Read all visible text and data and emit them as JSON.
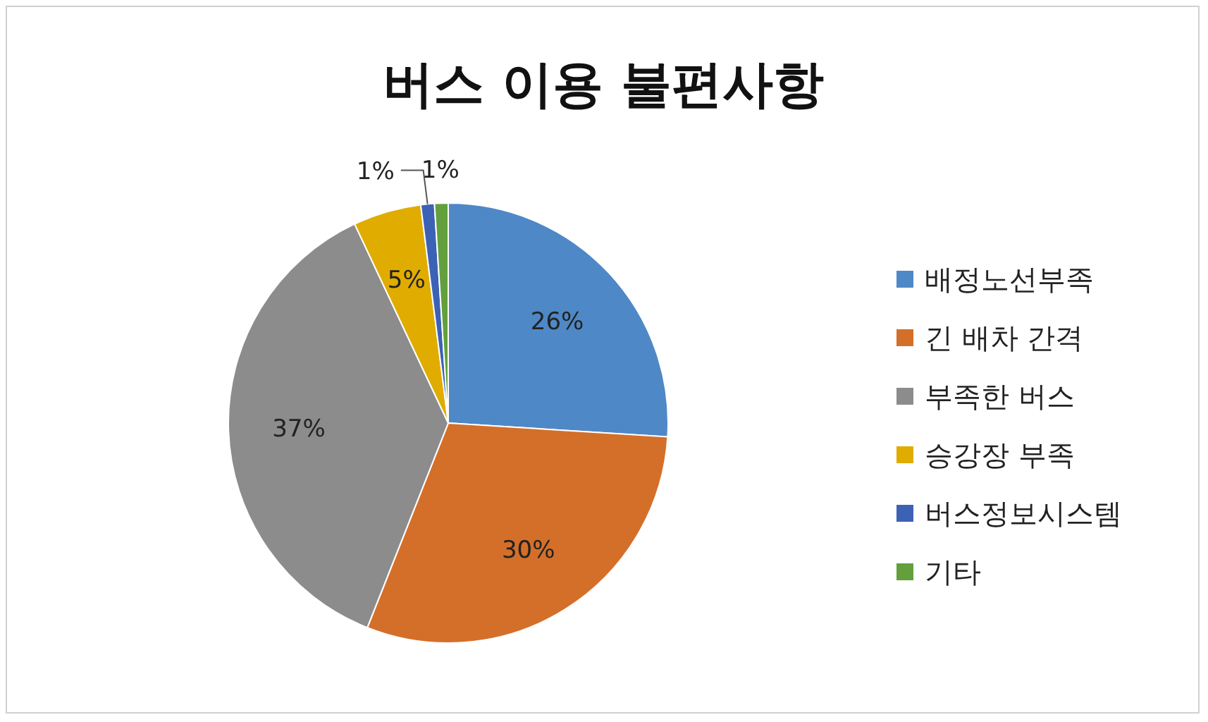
{
  "chart_data": {
    "type": "pie",
    "title": "버스 이용 불편사항",
    "categories": [
      "배정노선부족",
      "긴 배차 간격",
      "부족한 버스",
      "승강장 부족",
      "버스정보시스템",
      "기타"
    ],
    "values": [
      26,
      30,
      37,
      5,
      1,
      1
    ],
    "colors": [
      "#4f88c6",
      "#d46f2a",
      "#8c8c8c",
      "#e0ac00",
      "#3c62b5",
      "#63a03d"
    ],
    "value_labels": [
      "26%",
      "30%",
      "37%",
      "5%",
      "1%",
      "1%"
    ],
    "legend": "right"
  }
}
